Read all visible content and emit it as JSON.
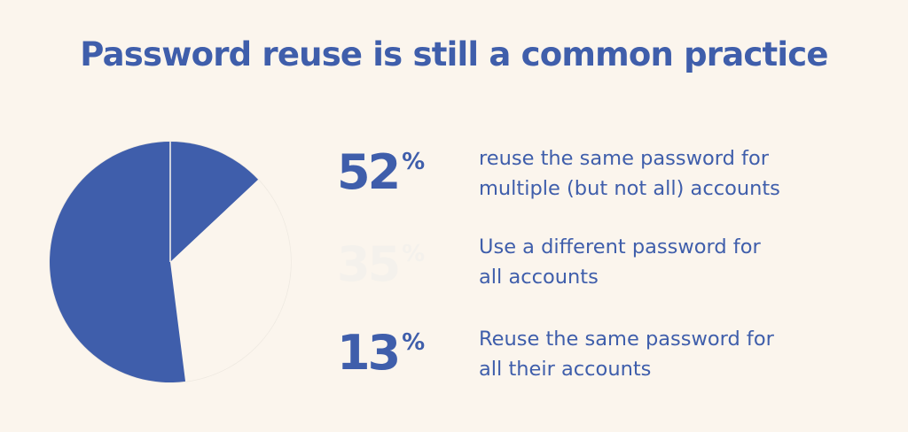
{
  "colors": {
    "background": "#fbf5ed",
    "accent": "#3f5eab",
    "faded": "#f4f1ec",
    "pie_outline": "#eee9e1"
  },
  "title": "Password reuse is still a common practice",
  "stats": [
    {
      "value": "52",
      "unit": "%",
      "description_lines": [
        "reuse the same password for",
        "multiple (but not all) accounts"
      ]
    },
    {
      "value": "35",
      "unit": "%",
      "description_lines": [
        "Use a different password for",
        "all accounts"
      ]
    },
    {
      "value": "13",
      "unit": "%",
      "description_lines": [
        "Reuse the same password for",
        "all their accounts"
      ]
    }
  ],
  "chart_data": {
    "type": "pie",
    "categories": [
      "reuse the same password for multiple (but not all) accounts",
      "Use a different password for all accounts",
      "Reuse the same password for all their accounts"
    ],
    "values": [
      52,
      35,
      13
    ],
    "unit": "%",
    "colors": [
      "#3f5eab",
      "#fbf5ed",
      "#3f5eab"
    ],
    "title": "Password reuse is still a common practice",
    "legend": "right"
  }
}
